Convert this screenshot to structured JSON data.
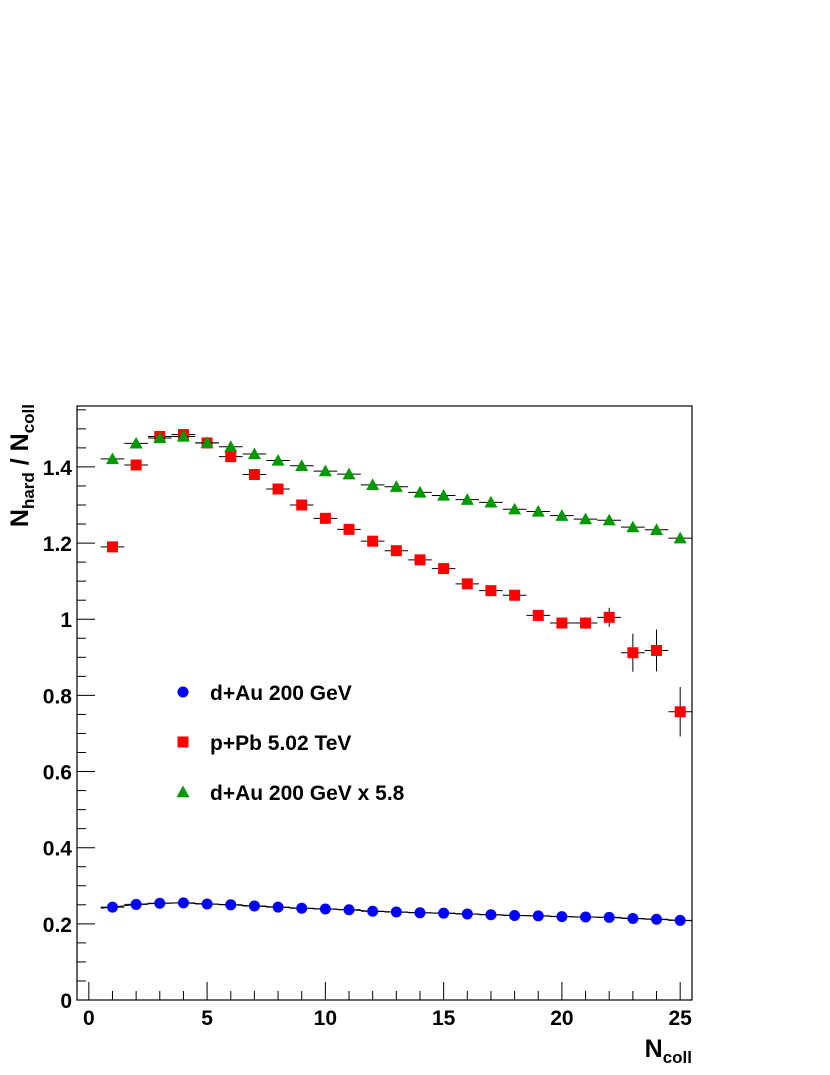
{
  "chart_data": {
    "type": "scatter",
    "title": "",
    "xlabel": {
      "main": "N",
      "sub": "coll"
    },
    "ylabel": {
      "main": "N",
      "sub": "hard",
      "sep": " / ",
      "main2": "N",
      "sub2": "coll"
    },
    "xlim": [
      -0.5,
      25.5
    ],
    "ylim": [
      0,
      1.56
    ],
    "x_ticks": [
      0,
      5,
      10,
      15,
      20,
      25
    ],
    "x_tick_labels": [
      "0",
      "5",
      "10",
      "15",
      "20",
      "25"
    ],
    "y_ticks": [
      0,
      0.2,
      0.4,
      0.6,
      0.8,
      1.0,
      1.2,
      1.4
    ],
    "y_tick_labels": [
      "0",
      "0.2",
      "0.4",
      "0.6",
      "0.8",
      "1",
      "1.2",
      "1.4"
    ],
    "series": [
      {
        "name": "d+Au 200 GeV",
        "marker": "circle",
        "color": "#0000ff",
        "x": [
          1,
          2,
          3,
          4,
          5,
          6,
          7,
          8,
          9,
          10,
          11,
          12,
          13,
          14,
          15,
          16,
          17,
          18,
          19,
          20,
          21,
          22,
          23,
          24,
          25
        ],
        "y": [
          0.244,
          0.251,
          0.254,
          0.255,
          0.252,
          0.25,
          0.247,
          0.244,
          0.241,
          0.239,
          0.237,
          0.233,
          0.231,
          0.229,
          0.228,
          0.226,
          0.224,
          0.222,
          0.221,
          0.219,
          0.218,
          0.217,
          0.214,
          0.212,
          0.209
        ],
        "yerr": [
          0,
          0,
          0,
          0,
          0,
          0,
          0,
          0,
          0,
          0,
          0,
          0,
          0,
          0,
          0,
          0,
          0,
          0,
          0,
          0,
          0,
          0,
          0,
          0,
          0
        ]
      },
      {
        "name": "p+Pb 5.02 TeV",
        "marker": "square",
        "color": "#ff0000",
        "x": [
          1,
          2,
          3,
          4,
          5,
          6,
          7,
          8,
          9,
          10,
          11,
          12,
          13,
          14,
          15,
          16,
          17,
          18,
          19,
          20,
          21,
          22,
          23,
          24,
          25
        ],
        "y": [
          1.19,
          1.405,
          1.48,
          1.485,
          1.463,
          1.427,
          1.38,
          1.342,
          1.3,
          1.265,
          1.236,
          1.205,
          1.18,
          1.156,
          1.133,
          1.093,
          1.075,
          1.063,
          1.01,
          0.99,
          0.99,
          1.005,
          0.912,
          0.918,
          0.757
        ],
        "yerr": [
          0,
          0,
          0,
          0,
          0,
          0,
          0,
          0,
          0,
          0,
          0,
          0,
          0,
          0,
          0,
          0,
          0,
          0.008,
          0.01,
          0.012,
          0.015,
          0.025,
          0.05,
          0.055,
          0.065
        ]
      },
      {
        "name": "d+Au 200 GeV x 5.8",
        "marker": "triangle",
        "color": "#009900",
        "x": [
          1,
          2,
          3,
          4,
          5,
          6,
          7,
          8,
          9,
          10,
          11,
          12,
          13,
          14,
          15,
          16,
          17,
          18,
          19,
          20,
          21,
          22,
          23,
          24,
          25
        ],
        "y": [
          1.421,
          1.462,
          1.476,
          1.48,
          1.463,
          1.453,
          1.434,
          1.417,
          1.403,
          1.389,
          1.381,
          1.353,
          1.348,
          1.333,
          1.325,
          1.314,
          1.307,
          1.289,
          1.283,
          1.272,
          1.263,
          1.26,
          1.242,
          1.235,
          1.213
        ],
        "yerr": [
          0,
          0,
          0,
          0,
          0,
          0,
          0,
          0,
          0,
          0,
          0,
          0,
          0,
          0,
          0,
          0,
          0,
          0,
          0,
          0,
          0,
          0,
          0,
          0,
          0
        ]
      }
    ],
    "legend": {
      "location": "center-left"
    },
    "grid": false
  }
}
